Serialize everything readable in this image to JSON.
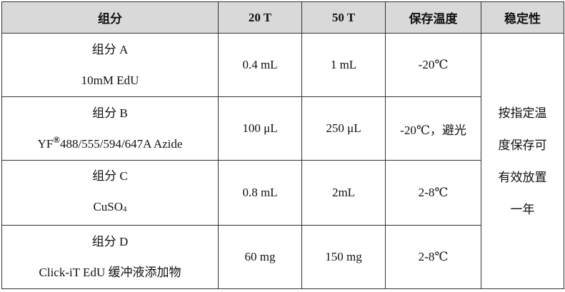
{
  "headers": [
    "组分",
    "20 T",
    "50 T",
    "保存温度",
    "稳定性"
  ],
  "rows": [
    {
      "name": "组分 A",
      "desc": "10mM EdU",
      "t20": "0.4 mL",
      "t50": "1 mL",
      "storage": "-20℃"
    },
    {
      "name": "组分 B",
      "desc_prefix": "YF",
      "desc_sup": "®",
      "desc": "488/555/594/647A Azide",
      "t20": "100 μL",
      "t50": "250 μL",
      "storage": "-20℃，避光"
    },
    {
      "name": "组分 C",
      "desc": "CuSO",
      "desc_sub": "4",
      "t20": "0.8 mL",
      "t50": "2mL",
      "storage": "2-8℃"
    },
    {
      "name": "组分 D",
      "desc": "Click-iT EdU 缓冲液添加物",
      "t20": "60 mg",
      "t50": "150 mg",
      "storage": "2-8℃"
    }
  ],
  "stability": [
    "按指定温",
    "度保存可",
    "有效放置",
    "一年"
  ],
  "colors": {
    "header_bg": "#d9d9d9",
    "border": "#333333"
  }
}
